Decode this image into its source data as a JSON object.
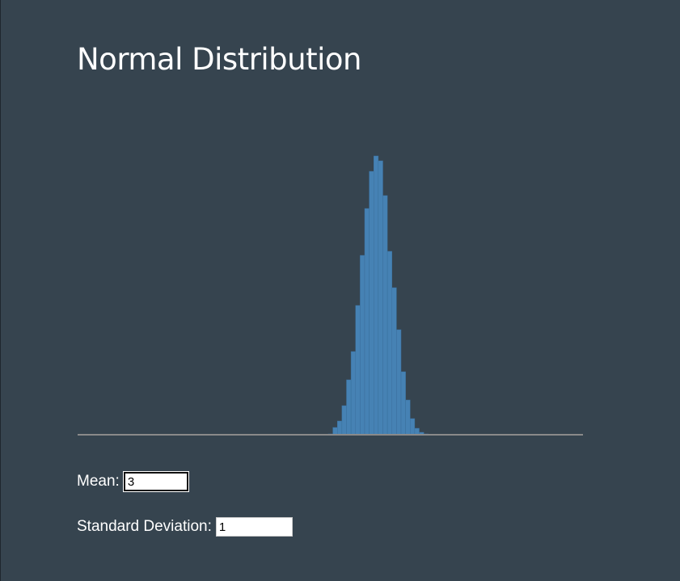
{
  "title": "Normal Distribution",
  "chart_data": {
    "type": "histogram",
    "color": "#4682b4",
    "bins": [
      2.48,
      2.525,
      2.57,
      2.615,
      2.66,
      2.705,
      2.75,
      2.795,
      2.84,
      2.885,
      2.93,
      2.975,
      3.02,
      3.065,
      3.11,
      3.155,
      3.2,
      3.245,
      3.29,
      3.335,
      3.38,
      3.425,
      3.47,
      3.515
    ],
    "values": [
      1,
      9,
      17,
      36,
      68,
      103,
      160,
      222,
      280,
      326,
      345,
      339,
      296,
      227,
      182,
      130,
      78,
      43,
      20,
      8,
      3,
      1,
      0
    ],
    "xlim": [
      0,
      5
    ],
    "ylim": [
      0,
      400
    ]
  },
  "controls": [
    {
      "label": "Mean:",
      "value": "3"
    },
    {
      "label": "Standard Deviation:",
      "value": "1"
    }
  ]
}
